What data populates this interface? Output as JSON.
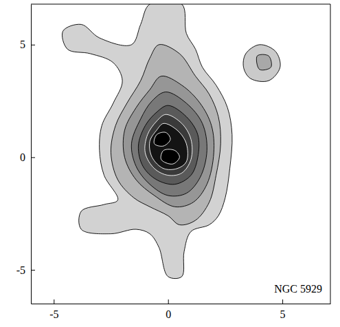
{
  "chart_data": {
    "type": "contour",
    "xlim": [
      -6.0,
      7.1
    ],
    "ylim": [
      -6.5,
      6.8
    ],
    "xticks": [
      -5,
      0,
      5
    ],
    "yticks": [
      -5,
      0,
      5
    ],
    "annotations": [
      {
        "text": "NGC 5929"
      }
    ],
    "series": [
      {
        "color": "#d2d2d2",
        "x": [
          -0.8,
          0.6,
          0.8,
          1.2,
          1.5,
          2.1,
          2.6,
          2.8,
          2.7,
          2.5,
          2.2,
          1.8,
          1.0,
          0.7,
          0.6,
          0.0,
          -0.4,
          -0.8,
          -1.4,
          -2.5,
          -3.8,
          -3.8,
          -2.8,
          -2.2,
          -2.8,
          -3.0,
          -2.9,
          -2.4,
          -2.0,
          -2.4,
          -3.4,
          -4.4,
          -4.6,
          -3.8,
          -3.0,
          -1.6,
          -1.2
        ],
        "y": [
          6.8,
          6.8,
          5.5,
          4.8,
          4.0,
          3.2,
          2.2,
          1.0,
          -0.5,
          -1.8,
          -2.6,
          -3.0,
          -3.3,
          -4.2,
          -5.3,
          -5.3,
          -4.0,
          -3.4,
          -3.2,
          -3.4,
          -3.2,
          -2.4,
          -2.1,
          -1.9,
          -0.8,
          0.3,
          1.4,
          2.4,
          3.4,
          4.2,
          4.6,
          4.8,
          5.6,
          5.9,
          5.3,
          5.0,
          5.9
        ]
      },
      {
        "color": "#cacaca",
        "x": [
          3.4,
          4.0,
          4.7,
          4.9,
          4.4,
          3.6,
          3.3
        ],
        "y": [
          4.6,
          5.0,
          4.7,
          4.0,
          3.4,
          3.5,
          4.0
        ]
      },
      {
        "color": "#a8a8a8",
        "x": [
          3.9,
          4.4,
          4.5,
          4.0
        ],
        "y": [
          4.5,
          4.5,
          4.0,
          3.9
        ]
      },
      {
        "color": "#b4b4b4",
        "x": [
          -0.4,
          0.5,
          1.2,
          1.8,
          2.2,
          2.3,
          2.1,
          1.8,
          1.2,
          0.5,
          0.0,
          -0.8,
          -1.5,
          -2.2,
          -2.5,
          -2.3,
          -1.8,
          -1.2,
          -0.8
        ],
        "y": [
          5.0,
          4.6,
          3.6,
          2.8,
          1.8,
          0.6,
          -0.8,
          -2.0,
          -2.8,
          -3.0,
          -2.6,
          -2.2,
          -1.8,
          -1.0,
          0.2,
          1.4,
          2.4,
          3.4,
          4.4
        ]
      },
      {
        "color": "#969696",
        "x": [
          -0.3,
          0.6,
          1.4,
          1.9,
          2.0,
          1.7,
          1.1,
          0.3,
          -0.6,
          -1.4,
          -1.9,
          -1.9,
          -1.4,
          -0.8
        ],
        "y": [
          3.6,
          3.2,
          2.4,
          1.4,
          0.2,
          -1.2,
          -2.0,
          -2.2,
          -1.7,
          -1.0,
          0.0,
          1.2,
          2.2,
          3.0
        ]
      },
      {
        "color": "#787878",
        "x": [
          -0.1,
          0.8,
          1.5,
          1.7,
          1.4,
          0.8,
          0.0,
          -0.8,
          -1.4,
          -1.6,
          -1.2,
          -0.7
        ],
        "y": [
          2.9,
          2.4,
          1.5,
          0.3,
          -0.9,
          -1.6,
          -1.7,
          -1.2,
          -0.4,
          0.6,
          1.7,
          2.5
        ]
      },
      {
        "color": "#5a5a5a",
        "x": [
          0.0,
          0.8,
          1.3,
          1.3,
          1.0,
          0.3,
          -0.5,
          -1.1,
          -1.3,
          -1.0,
          -0.5
        ],
        "y": [
          2.3,
          1.8,
          1.0,
          0.0,
          -0.8,
          -1.2,
          -1.0,
          -0.4,
          0.5,
          1.4,
          2.0
        ]
      },
      {
        "color": "#3a3a3a",
        "x": [
          -0.1,
          0.6,
          1.0,
          1.0,
          0.6,
          0.0,
          -0.6,
          -1.0,
          -0.9,
          -0.5
        ],
        "y": [
          1.9,
          1.5,
          0.8,
          -0.1,
          -0.7,
          -0.8,
          -0.5,
          0.2,
          1.0,
          1.6
        ]
      },
      {
        "color": "#141414",
        "x": [
          -0.2,
          0.4,
          0.8,
          0.8,
          0.4,
          -0.2,
          -0.7,
          -0.8,
          -0.5
        ],
        "y": [
          1.5,
          1.2,
          0.6,
          -0.2,
          -0.5,
          -0.5,
          0.0,
          0.7,
          1.2
        ]
      },
      {
        "color": "#000000",
        "x": [
          -0.5,
          -0.1,
          0.1,
          -0.2,
          -0.6
        ],
        "y": [
          1.0,
          1.1,
          0.8,
          0.5,
          0.6
        ]
      },
      {
        "color": "#000000",
        "x": [
          -0.2,
          0.3,
          0.5,
          0.2,
          -0.3
        ],
        "y": [
          0.3,
          0.3,
          0.0,
          -0.3,
          -0.1
        ]
      }
    ]
  }
}
